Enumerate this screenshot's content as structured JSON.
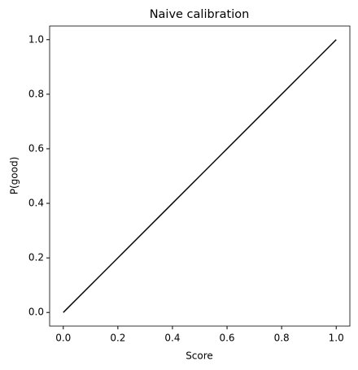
{
  "chart_data": {
    "type": "line",
    "title": "Naive calibration",
    "x_label": "Score",
    "y_label": "P(good)",
    "x": [
      0,
      1
    ],
    "values": [
      0,
      1
    ],
    "color": "#000000",
    "xlim": [
      -0.05,
      1.05
    ],
    "ylim": [
      -0.05,
      1.05
    ],
    "xticks": [
      {
        "value": 0,
        "label": "0.0"
      },
      {
        "value": 0.2,
        "label": "0.2"
      },
      {
        "value": 0.4,
        "label": "0.4"
      },
      {
        "value": 0.6,
        "label": "0.6"
      },
      {
        "value": 0.8,
        "label": "0.8"
      },
      {
        "value": 1,
        "label": "1.0"
      }
    ],
    "yticks": [
      {
        "value": 0,
        "label": "0.0"
      },
      {
        "value": 0.2,
        "label": "0.2"
      },
      {
        "value": 0.4,
        "label": "0.4"
      },
      {
        "value": 0.6,
        "label": "0.6"
      },
      {
        "value": 0.8,
        "label": "0.8"
      },
      {
        "value": 1,
        "label": "1.0"
      }
    ]
  }
}
